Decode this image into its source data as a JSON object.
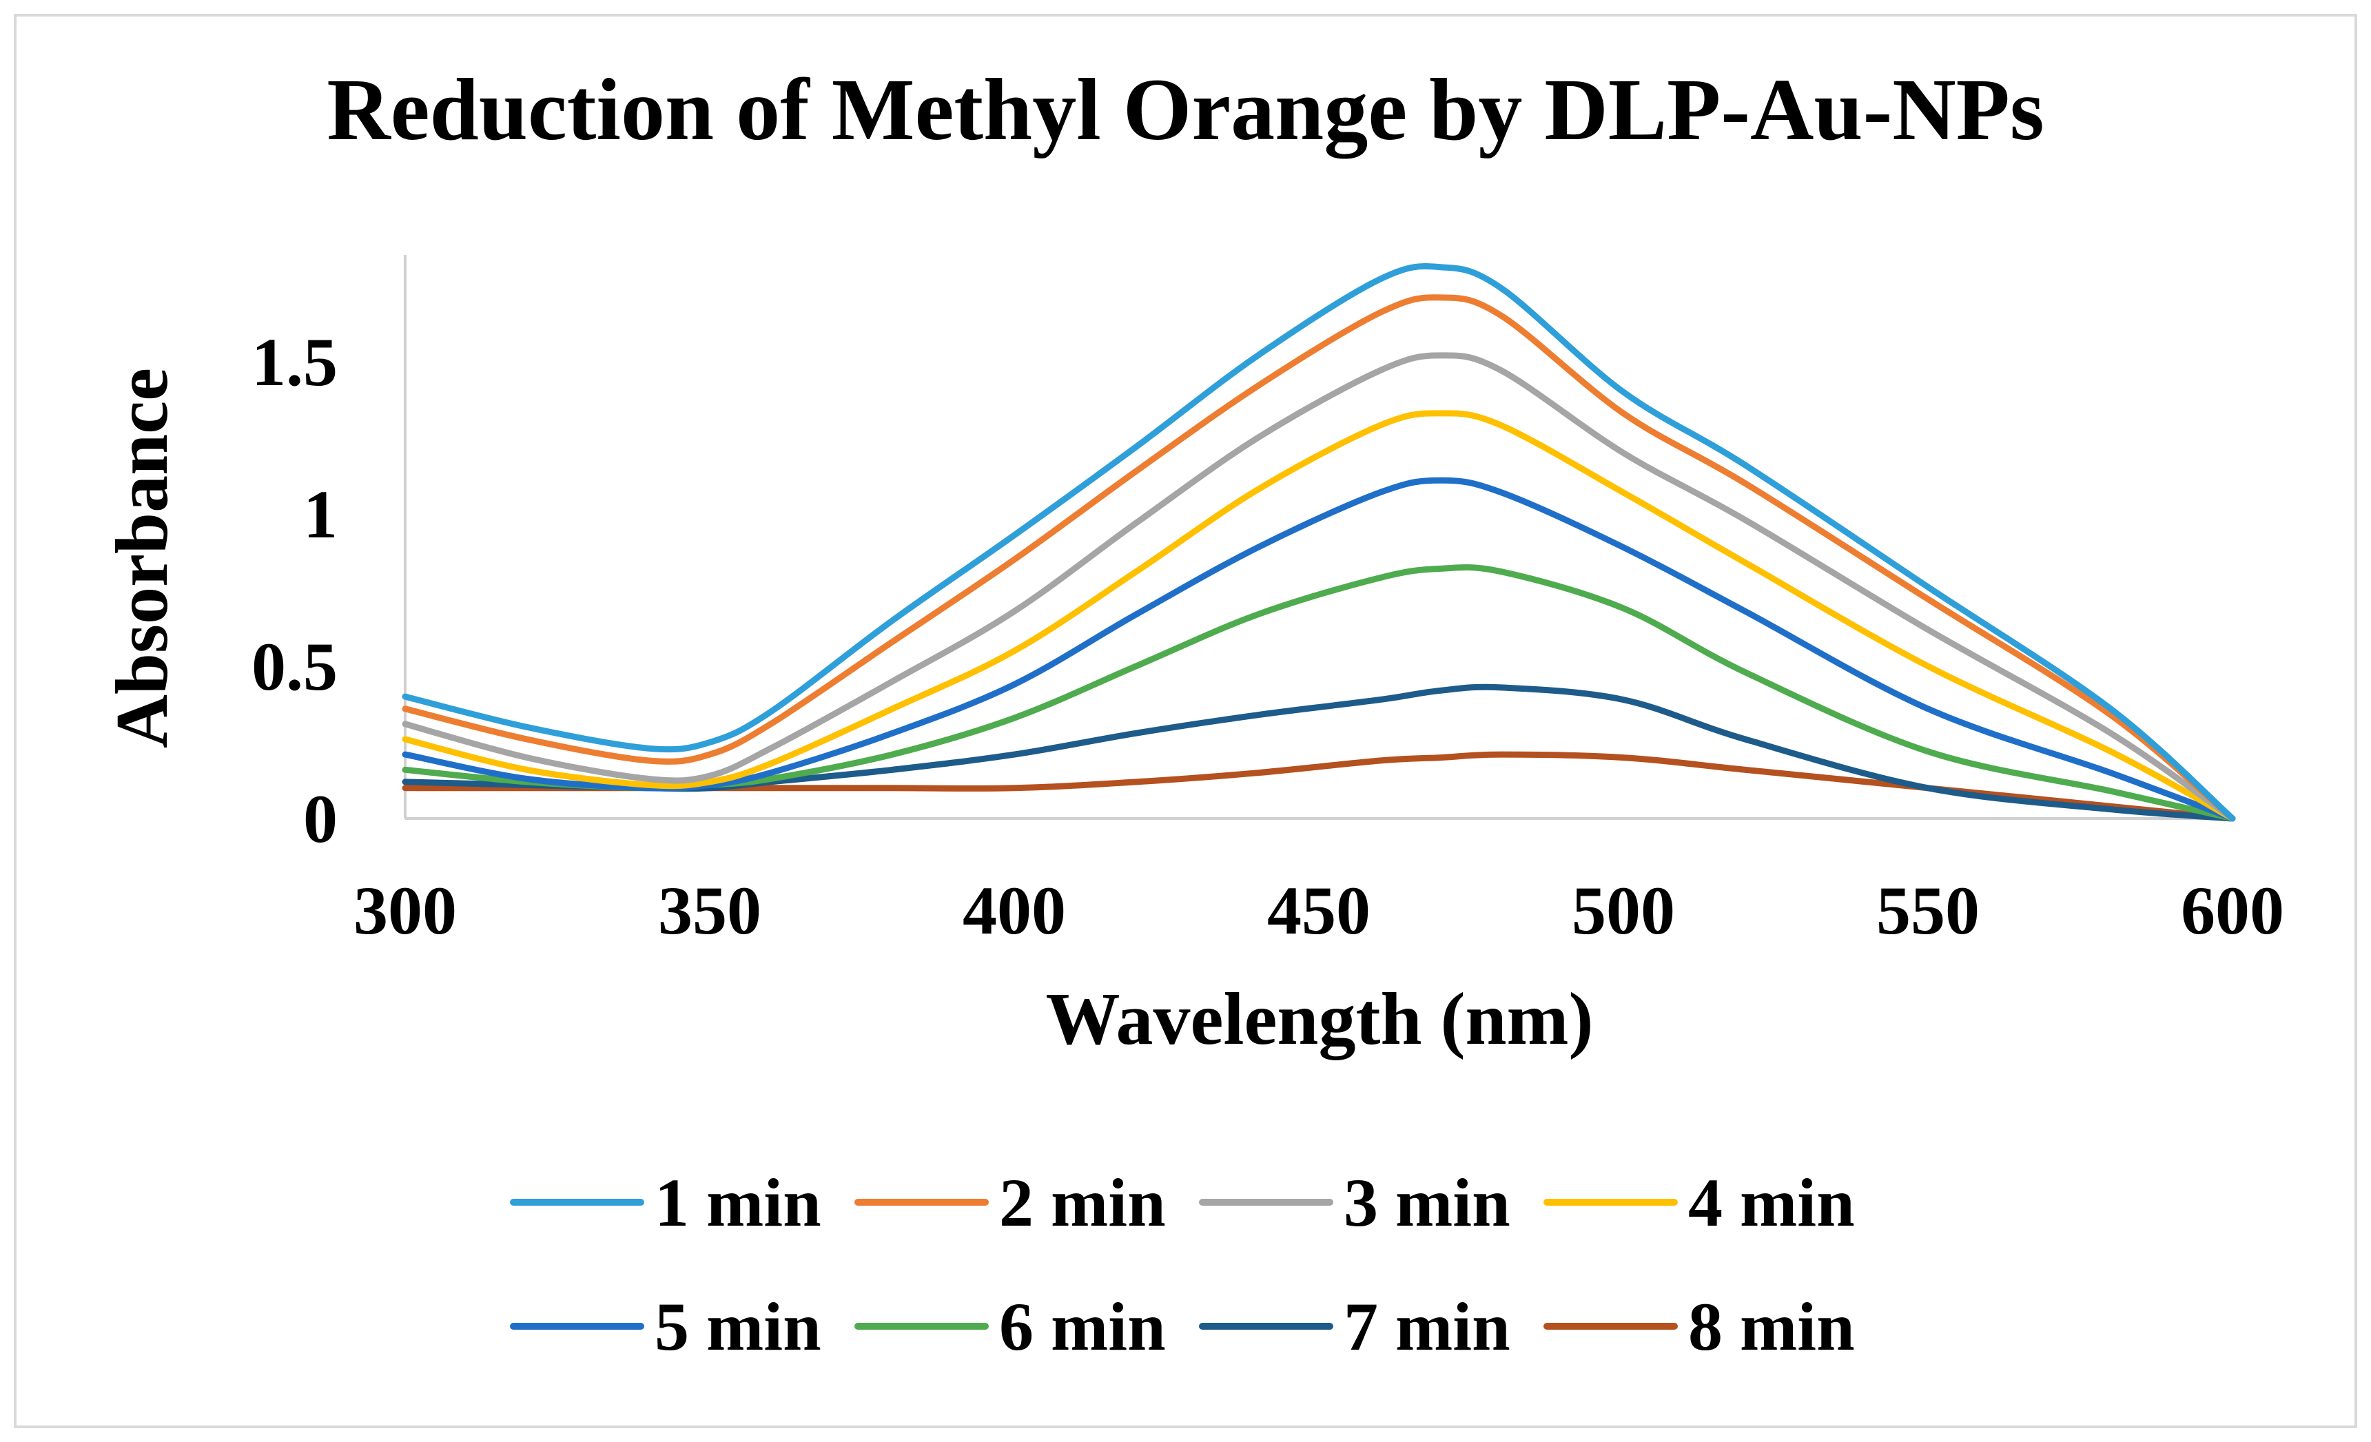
{
  "chart_data": {
    "type": "line",
    "title": "Reduction of Methyl Orange by DLP-Au-NPs",
    "xlabel": "Wavelength (nm)",
    "ylabel": "Absorbance",
    "xlim": [
      300,
      600
    ],
    "ylim": [
      0,
      1.85
    ],
    "xticks": [
      300,
      350,
      400,
      450,
      500,
      550,
      600
    ],
    "yticks": [
      0,
      0.5,
      1,
      1.5
    ],
    "ytick_labels": [
      "0",
      "0.5",
      "1",
      "1.5"
    ],
    "grid": false,
    "legend": "bottom",
    "x": [
      300,
      320,
      340,
      350,
      360,
      380,
      400,
      420,
      440,
      460,
      470,
      480,
      500,
      520,
      550,
      580,
      600
    ],
    "series": [
      {
        "name": "1 min",
        "color": "#2e9fd9",
        "values": [
          0.4,
          0.3,
          0.23,
          0.25,
          0.35,
          0.65,
          0.93,
          1.22,
          1.52,
          1.77,
          1.81,
          1.74,
          1.4,
          1.16,
          0.76,
          0.36,
          0.0
        ]
      },
      {
        "name": "2 min",
        "color": "#ed7d31",
        "values": [
          0.36,
          0.26,
          0.19,
          0.21,
          0.31,
          0.58,
          0.85,
          1.14,
          1.42,
          1.66,
          1.71,
          1.65,
          1.33,
          1.1,
          0.72,
          0.34,
          0.0
        ]
      },
      {
        "name": "3 min",
        "color": "#a5a5a5",
        "values": [
          0.31,
          0.2,
          0.13,
          0.14,
          0.23,
          0.45,
          0.68,
          0.97,
          1.25,
          1.47,
          1.52,
          1.47,
          1.2,
          0.98,
          0.62,
          0.28,
          0.0
        ]
      },
      {
        "name": "4 min",
        "color": "#ffc000",
        "values": [
          0.26,
          0.16,
          0.11,
          0.12,
          0.18,
          0.36,
          0.55,
          0.81,
          1.08,
          1.29,
          1.33,
          1.29,
          1.07,
          0.84,
          0.5,
          0.22,
          0.0
        ]
      },
      {
        "name": "5 min",
        "color": "#1f6fc9",
        "values": [
          0.21,
          0.13,
          0.1,
          0.11,
          0.15,
          0.28,
          0.44,
          0.67,
          0.89,
          1.07,
          1.11,
          1.07,
          0.89,
          0.68,
          0.36,
          0.15,
          0.0
        ]
      },
      {
        "name": "6 min",
        "color": "#4eab4e",
        "values": [
          0.16,
          0.12,
          0.1,
          0.11,
          0.13,
          0.21,
          0.33,
          0.5,
          0.67,
          0.79,
          0.82,
          0.81,
          0.69,
          0.48,
          0.22,
          0.09,
          0.0
        ]
      },
      {
        "name": "7 min",
        "color": "#1d5b8a",
        "values": [
          0.12,
          0.11,
          0.1,
          0.1,
          0.12,
          0.16,
          0.21,
          0.28,
          0.34,
          0.39,
          0.42,
          0.43,
          0.39,
          0.26,
          0.1,
          0.03,
          0.0
        ]
      },
      {
        "name": "8 min",
        "color": "#b5501f",
        "values": [
          0.1,
          0.1,
          0.1,
          0.1,
          0.1,
          0.1,
          0.1,
          0.12,
          0.15,
          0.19,
          0.2,
          0.21,
          0.2,
          0.16,
          0.1,
          0.04,
          0.0
        ]
      }
    ]
  }
}
